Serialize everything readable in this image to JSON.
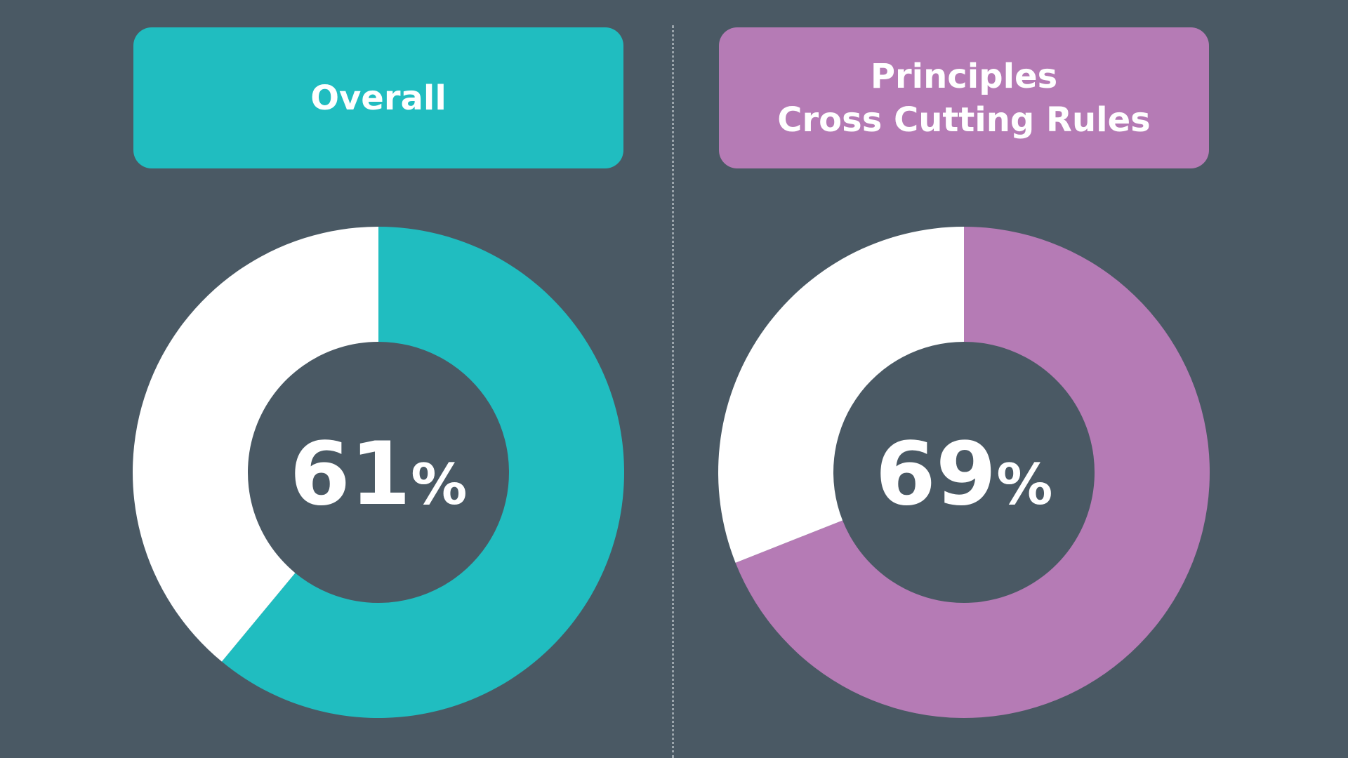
{
  "chart_data": [
    {
      "type": "pie",
      "title": "Overall",
      "values": [
        61,
        39
      ],
      "center_label": "61",
      "unit": "%",
      "colors": [
        "#20bdc0",
        "#ffffff"
      ]
    },
    {
      "type": "pie",
      "title": "Principles\nCross Cutting Rules",
      "values": [
        69,
        31
      ],
      "center_label": "69",
      "unit": "%",
      "colors": [
        "#b57bb5",
        "#ffffff"
      ]
    }
  ],
  "colors": {
    "background": "#4a5964"
  }
}
